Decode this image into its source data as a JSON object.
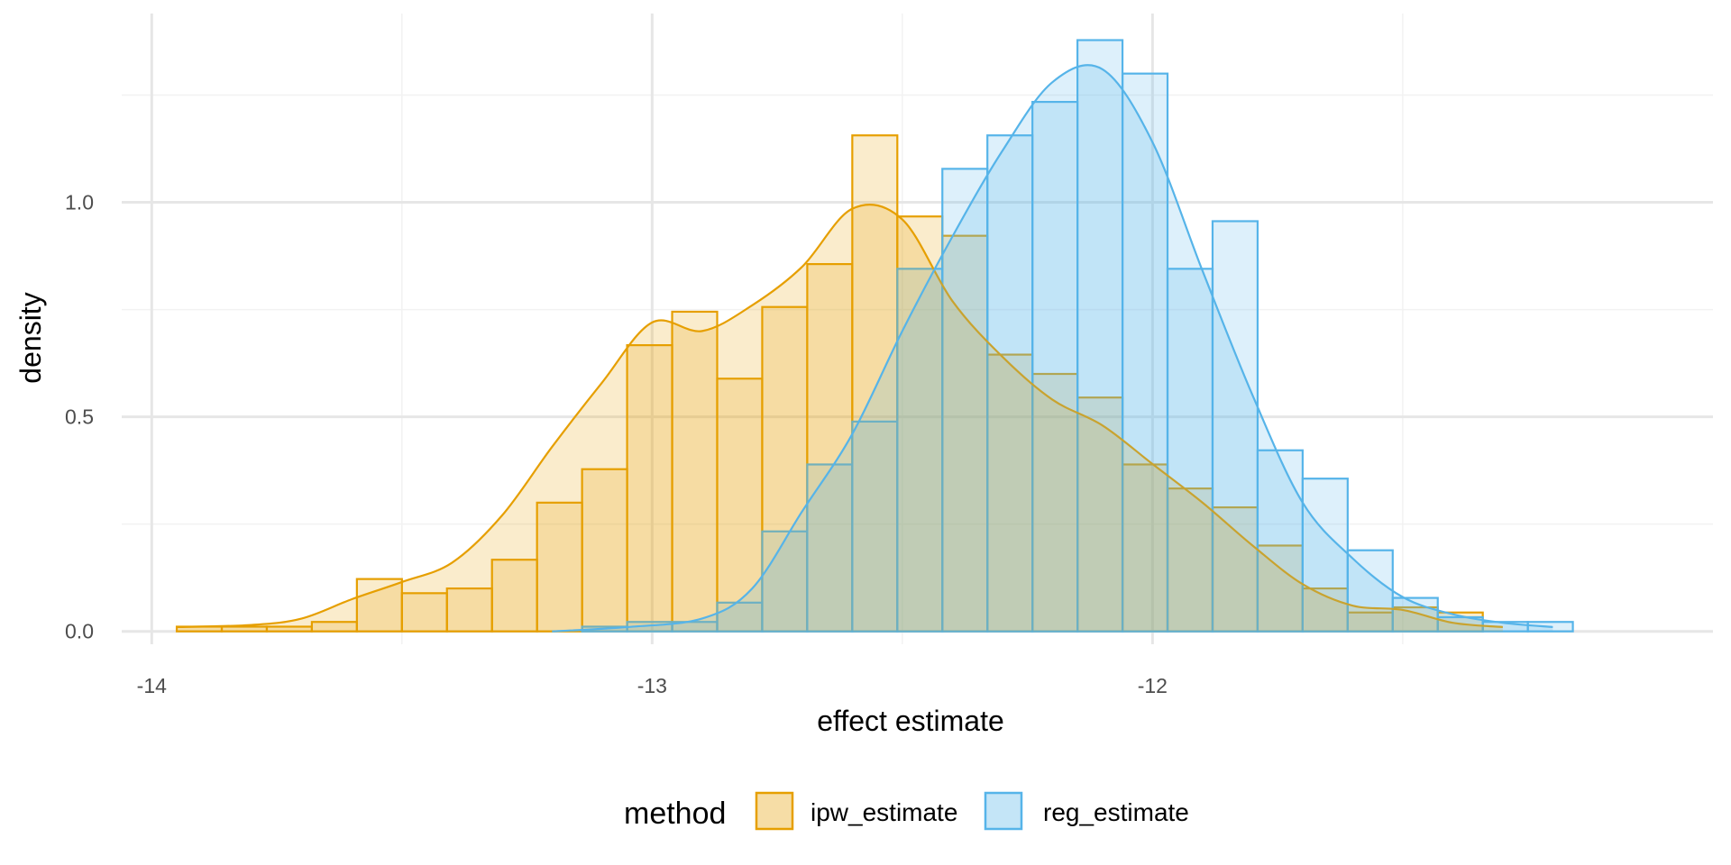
{
  "chart_data": {
    "type": "histogram",
    "xlabel": "effect estimate",
    "ylabel": "density",
    "xlim": [
      -14.06,
      -10.88
    ],
    "ylim": [
      -0.03,
      1.44
    ],
    "x_ticks": [
      -14,
      -13,
      -12
    ],
    "y_ticks": [
      0.0,
      0.5,
      1.0
    ],
    "x_tick_labels": [
      "-14",
      "-13",
      "-12"
    ],
    "y_tick_labels": [
      "0.0",
      "0.5",
      "1.0"
    ],
    "grid": true,
    "legend": {
      "title": "method",
      "position": "bottom"
    },
    "bin_width": 0.09,
    "series": [
      {
        "name": "ipw_estimate",
        "color": "#E69F00",
        "bins_left": [
          -13.95,
          -13.86,
          -13.77,
          -13.68,
          -13.59,
          -13.5,
          -13.41,
          -13.32,
          -13.23,
          -13.14,
          -13.05,
          -12.96,
          -12.87,
          -12.78,
          -12.69,
          -12.6,
          -12.51,
          -12.42,
          -12.33,
          -12.24,
          -12.15,
          -12.06,
          -11.97,
          -11.88,
          -11.79,
          -11.7,
          -11.61,
          -11.52,
          -11.43,
          -11.34,
          -11.25
        ],
        "values": [
          0.011,
          0.011,
          0.011,
          0.022,
          0.122,
          0.089,
          0.1,
          0.167,
          0.3,
          0.378,
          0.667,
          0.745,
          0.589,
          0.756,
          0.856,
          1.156,
          0.967,
          0.922,
          0.645,
          0.6,
          0.545,
          0.389,
          0.333,
          0.289,
          0.2,
          0.1,
          0.044,
          0.056,
          0.044,
          0,
          0
        ],
        "density_x": [
          -13.95,
          -13.8,
          -13.7,
          -13.6,
          -13.5,
          -13.4,
          -13.3,
          -13.2,
          -13.1,
          -13.0,
          -12.9,
          -12.8,
          -12.7,
          -12.6,
          -12.5,
          -12.4,
          -12.3,
          -12.2,
          -12.1,
          -12.0,
          -11.9,
          -11.8,
          -11.7,
          -11.6,
          -11.5,
          -11.4,
          -11.3
        ],
        "density_y": [
          0.01,
          0.015,
          0.03,
          0.075,
          0.115,
          0.16,
          0.27,
          0.43,
          0.58,
          0.72,
          0.7,
          0.76,
          0.85,
          0.985,
          0.96,
          0.77,
          0.64,
          0.54,
          0.48,
          0.39,
          0.3,
          0.2,
          0.11,
          0.06,
          0.05,
          0.02,
          0.01
        ]
      },
      {
        "name": "reg_estimate",
        "color": "#56B4E9",
        "bins_left": [
          -13.95,
          -13.86,
          -13.77,
          -13.68,
          -13.59,
          -13.5,
          -13.41,
          -13.32,
          -13.23,
          -13.14,
          -13.05,
          -12.96,
          -12.87,
          -12.78,
          -12.69,
          -12.6,
          -12.51,
          -12.42,
          -12.33,
          -12.24,
          -12.15,
          -12.06,
          -11.97,
          -11.88,
          -11.79,
          -11.7,
          -11.61,
          -11.52,
          -11.43,
          -11.34,
          -11.25
        ],
        "values": [
          0,
          0,
          0,
          0,
          0,
          0,
          0,
          0,
          0,
          0.011,
          0.022,
          0.022,
          0.067,
          0.233,
          0.389,
          0.489,
          0.845,
          1.078,
          1.156,
          1.234,
          1.378,
          1.3,
          0.845,
          0.956,
          0.422,
          0.356,
          0.189,
          0.078,
          0.033,
          0.022,
          0.022
        ],
        "density_x": [
          -13.2,
          -13.05,
          -12.9,
          -12.8,
          -12.7,
          -12.6,
          -12.5,
          -12.4,
          -12.3,
          -12.2,
          -12.1,
          -12.0,
          -11.9,
          -11.8,
          -11.7,
          -11.6,
          -11.5,
          -11.4,
          -11.3,
          -11.2
        ],
        "density_y": [
          0.0,
          0.01,
          0.03,
          0.1,
          0.28,
          0.46,
          0.7,
          0.92,
          1.12,
          1.28,
          1.31,
          1.14,
          0.84,
          0.55,
          0.3,
          0.17,
          0.08,
          0.04,
          0.02,
          0.01
        ]
      }
    ]
  }
}
